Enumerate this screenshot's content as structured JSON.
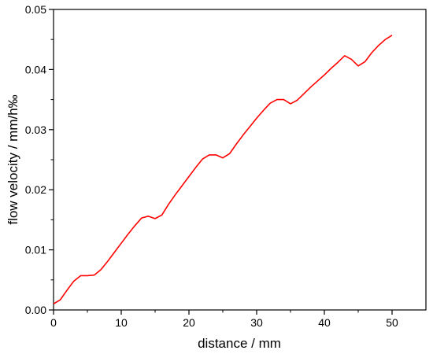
{
  "chart_data": {
    "type": "line",
    "title": "",
    "xlabel": "distance  / mm",
    "ylabel": "flow velocity / mm/h‰",
    "xlim": [
      0,
      55
    ],
    "ylim": [
      0,
      0.05
    ],
    "x_ticks": [
      0,
      10,
      20,
      30,
      40,
      50
    ],
    "x_tick_labels": [
      "0",
      "10",
      "20",
      "30",
      "40",
      "50"
    ],
    "y_ticks": [
      0,
      0.01,
      0.02,
      0.03,
      0.04,
      0.05
    ],
    "y_tick_labels": [
      "0.00",
      "0.01",
      "0.02",
      "0.03",
      "0.04",
      "0.05"
    ],
    "grid": false,
    "legend": "none",
    "line_color": "#ff0000",
    "series": [
      {
        "x": [
          0,
          1,
          2,
          3,
          4,
          5,
          6,
          7,
          8,
          9,
          10,
          11,
          12,
          13,
          14,
          15,
          16,
          17,
          18,
          19,
          20,
          21,
          22,
          23,
          24,
          25,
          26,
          27,
          28,
          29,
          30,
          31,
          32,
          33,
          34,
          35,
          36,
          37,
          38,
          39,
          40,
          41,
          42,
          43,
          44,
          45,
          46,
          47,
          48,
          49,
          50
        ],
        "y": [
          0.001,
          0.0017,
          0.0033,
          0.0048,
          0.0057,
          0.0057,
          0.0058,
          0.0067,
          0.0081,
          0.0096,
          0.0111,
          0.0126,
          0.014,
          0.0153,
          0.0156,
          0.0152,
          0.0158,
          0.0176,
          0.0192,
          0.0207,
          0.0222,
          0.0237,
          0.0251,
          0.0258,
          0.0258,
          0.0253,
          0.026,
          0.0276,
          0.0291,
          0.0305,
          0.0319,
          0.0332,
          0.0344,
          0.035,
          0.035,
          0.0343,
          0.0349,
          0.036,
          0.0371,
          0.0381,
          0.0391,
          0.0402,
          0.0412,
          0.0423,
          0.0417,
          0.0406,
          0.0413,
          0.0428,
          0.044,
          0.045,
          0.0457
        ]
      }
    ]
  }
}
